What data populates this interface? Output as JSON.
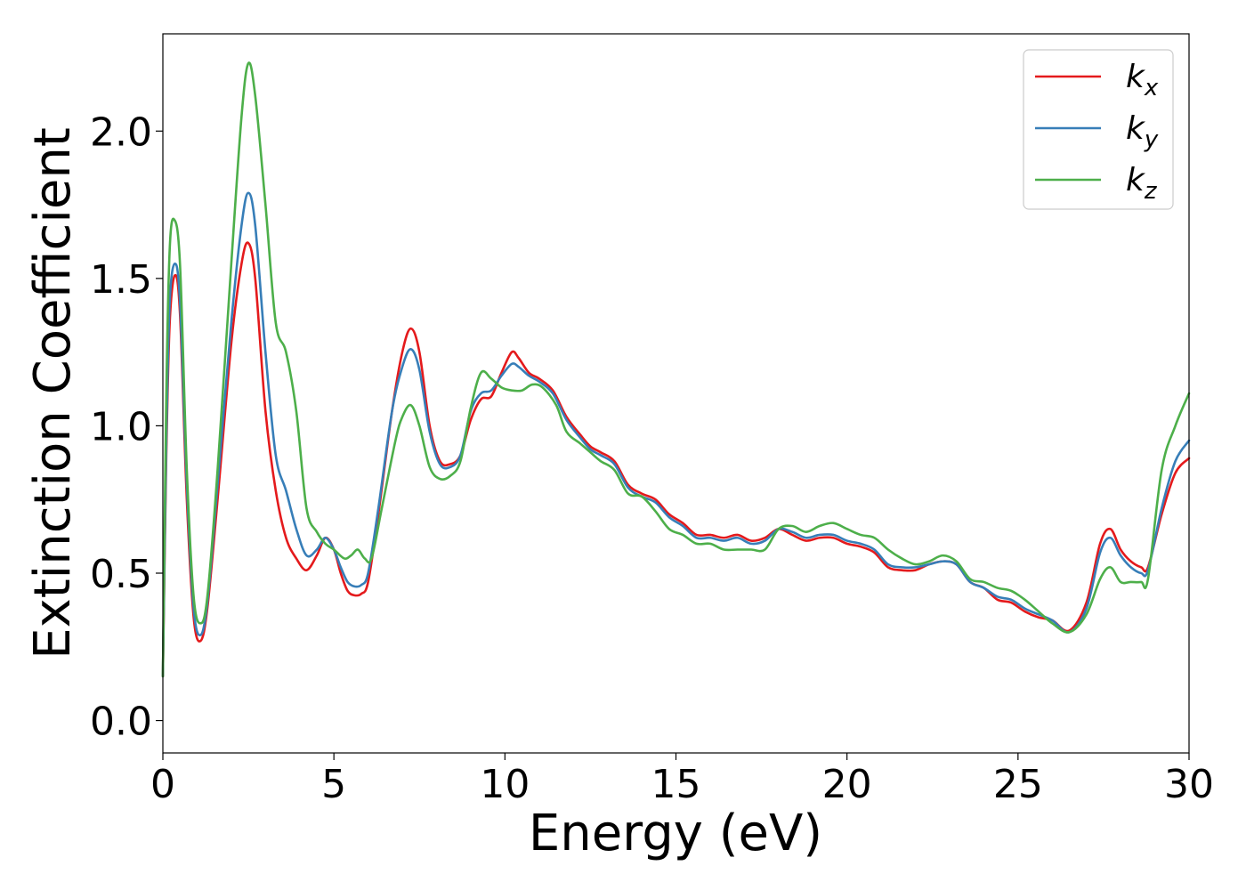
{
  "chart_data": {
    "type": "line",
    "title": "",
    "xlabel": "Energy (eV)",
    "ylabel": "Extinction Coefficient",
    "xlim": [
      0,
      30
    ],
    "ylim": [
      -0.11,
      2.33
    ],
    "xticks": [
      0,
      5,
      10,
      15,
      20,
      25,
      30
    ],
    "xtick_labels": [
      "0",
      "5",
      "10",
      "15",
      "20",
      "25",
      "30"
    ],
    "yticks": [
      0.0,
      0.5,
      1.0,
      1.5,
      2.0
    ],
    "ytick_labels": [
      "0.0",
      "0.5",
      "1.0",
      "1.5",
      "2.0"
    ],
    "grid": false,
    "legend_position": "top-right",
    "series": [
      {
        "name": "k_x",
        "legend_base": "k",
        "legend_sub": "x",
        "color": "#e41a1c",
        "points": [
          [
            0,
            0.15
          ],
          [
            0.1,
            0.9
          ],
          [
            0.2,
            1.35
          ],
          [
            0.35,
            1.51
          ],
          [
            0.5,
            1.38
          ],
          [
            0.7,
            0.75
          ],
          [
            0.9,
            0.35
          ],
          [
            1.1,
            0.27
          ],
          [
            1.3,
            0.38
          ],
          [
            1.6,
            0.75
          ],
          [
            2.0,
            1.28
          ],
          [
            2.3,
            1.55
          ],
          [
            2.5,
            1.62
          ],
          [
            2.7,
            1.5
          ],
          [
            3.0,
            1.05
          ],
          [
            3.3,
            0.78
          ],
          [
            3.6,
            0.62
          ],
          [
            3.9,
            0.55
          ],
          [
            4.2,
            0.51
          ],
          [
            4.5,
            0.56
          ],
          [
            4.75,
            0.62
          ],
          [
            5.0,
            0.58
          ],
          [
            5.2,
            0.5
          ],
          [
            5.4,
            0.44
          ],
          [
            5.6,
            0.425
          ],
          [
            5.8,
            0.43
          ],
          [
            6.0,
            0.47
          ],
          [
            6.3,
            0.7
          ],
          [
            6.7,
            1.05
          ],
          [
            7.0,
            1.25
          ],
          [
            7.25,
            1.33
          ],
          [
            7.5,
            1.25
          ],
          [
            7.8,
            1.0
          ],
          [
            8.1,
            0.88
          ],
          [
            8.4,
            0.87
          ],
          [
            8.7,
            0.9
          ],
          [
            9.0,
            1.02
          ],
          [
            9.3,
            1.09
          ],
          [
            9.6,
            1.1
          ],
          [
            9.9,
            1.18
          ],
          [
            10.2,
            1.25
          ],
          [
            10.4,
            1.23
          ],
          [
            10.7,
            1.18
          ],
          [
            11.0,
            1.16
          ],
          [
            11.4,
            1.12
          ],
          [
            11.8,
            1.03
          ],
          [
            12.2,
            0.97
          ],
          [
            12.5,
            0.93
          ],
          [
            12.8,
            0.91
          ],
          [
            13.2,
            0.88
          ],
          [
            13.6,
            0.8
          ],
          [
            14.0,
            0.77
          ],
          [
            14.4,
            0.75
          ],
          [
            14.8,
            0.7
          ],
          [
            15.2,
            0.67
          ],
          [
            15.6,
            0.63
          ],
          [
            16.0,
            0.63
          ],
          [
            16.4,
            0.62
          ],
          [
            16.8,
            0.63
          ],
          [
            17.2,
            0.61
          ],
          [
            17.6,
            0.62
          ],
          [
            18.0,
            0.65
          ],
          [
            18.4,
            0.63
          ],
          [
            18.8,
            0.61
          ],
          [
            19.2,
            0.62
          ],
          [
            19.6,
            0.62
          ],
          [
            20.0,
            0.6
          ],
          [
            20.4,
            0.59
          ],
          [
            20.8,
            0.57
          ],
          [
            21.2,
            0.52
          ],
          [
            21.6,
            0.51
          ],
          [
            22.0,
            0.51
          ],
          [
            22.4,
            0.53
          ],
          [
            22.8,
            0.54
          ],
          [
            23.2,
            0.53
          ],
          [
            23.6,
            0.47
          ],
          [
            24.0,
            0.45
          ],
          [
            24.4,
            0.41
          ],
          [
            24.8,
            0.4
          ],
          [
            25.2,
            0.37
          ],
          [
            25.6,
            0.35
          ],
          [
            26.0,
            0.34
          ],
          [
            26.5,
            0.305
          ],
          [
            27.0,
            0.4
          ],
          [
            27.4,
            0.6
          ],
          [
            27.7,
            0.65
          ],
          [
            28.0,
            0.58
          ],
          [
            28.3,
            0.54
          ],
          [
            28.6,
            0.52
          ],
          [
            28.8,
            0.52
          ],
          [
            29.2,
            0.7
          ],
          [
            29.6,
            0.84
          ],
          [
            30.0,
            0.89
          ]
        ]
      },
      {
        "name": "k_y",
        "legend_base": "k",
        "legend_sub": "y",
        "color": "#377eb8",
        "points": [
          [
            0,
            0.15
          ],
          [
            0.1,
            0.95
          ],
          [
            0.2,
            1.42
          ],
          [
            0.35,
            1.55
          ],
          [
            0.5,
            1.42
          ],
          [
            0.7,
            0.8
          ],
          [
            0.9,
            0.38
          ],
          [
            1.1,
            0.29
          ],
          [
            1.3,
            0.4
          ],
          [
            1.6,
            0.8
          ],
          [
            2.0,
            1.35
          ],
          [
            2.3,
            1.68
          ],
          [
            2.5,
            1.79
          ],
          [
            2.7,
            1.68
          ],
          [
            3.0,
            1.25
          ],
          [
            3.3,
            0.9
          ],
          [
            3.6,
            0.78
          ],
          [
            3.9,
            0.65
          ],
          [
            4.2,
            0.56
          ],
          [
            4.5,
            0.58
          ],
          [
            4.75,
            0.62
          ],
          [
            5.0,
            0.58
          ],
          [
            5.2,
            0.52
          ],
          [
            5.4,
            0.47
          ],
          [
            5.6,
            0.455
          ],
          [
            5.8,
            0.46
          ],
          [
            6.0,
            0.5
          ],
          [
            6.3,
            0.72
          ],
          [
            6.7,
            1.05
          ],
          [
            7.0,
            1.2
          ],
          [
            7.25,
            1.26
          ],
          [
            7.5,
            1.19
          ],
          [
            7.8,
            0.98
          ],
          [
            8.1,
            0.87
          ],
          [
            8.4,
            0.86
          ],
          [
            8.7,
            0.9
          ],
          [
            9.0,
            1.05
          ],
          [
            9.3,
            1.11
          ],
          [
            9.6,
            1.12
          ],
          [
            9.9,
            1.17
          ],
          [
            10.2,
            1.21
          ],
          [
            10.4,
            1.2
          ],
          [
            10.7,
            1.17
          ],
          [
            11.0,
            1.15
          ],
          [
            11.4,
            1.11
          ],
          [
            11.8,
            1.02
          ],
          [
            12.2,
            0.96
          ],
          [
            12.5,
            0.92
          ],
          [
            12.8,
            0.9
          ],
          [
            13.2,
            0.87
          ],
          [
            13.6,
            0.79
          ],
          [
            14.0,
            0.76
          ],
          [
            14.4,
            0.74
          ],
          [
            14.8,
            0.69
          ],
          [
            15.2,
            0.66
          ],
          [
            15.6,
            0.62
          ],
          [
            16.0,
            0.62
          ],
          [
            16.4,
            0.61
          ],
          [
            16.8,
            0.62
          ],
          [
            17.2,
            0.6
          ],
          [
            17.6,
            0.61
          ],
          [
            18.0,
            0.65
          ],
          [
            18.4,
            0.64
          ],
          [
            18.8,
            0.62
          ],
          [
            19.2,
            0.63
          ],
          [
            19.6,
            0.63
          ],
          [
            20.0,
            0.61
          ],
          [
            20.4,
            0.6
          ],
          [
            20.8,
            0.58
          ],
          [
            21.2,
            0.53
          ],
          [
            21.6,
            0.52
          ],
          [
            22.0,
            0.52
          ],
          [
            22.4,
            0.53
          ],
          [
            22.8,
            0.54
          ],
          [
            23.2,
            0.53
          ],
          [
            23.6,
            0.47
          ],
          [
            24.0,
            0.45
          ],
          [
            24.4,
            0.42
          ],
          [
            24.8,
            0.41
          ],
          [
            25.2,
            0.38
          ],
          [
            25.6,
            0.36
          ],
          [
            26.0,
            0.34
          ],
          [
            26.5,
            0.3
          ],
          [
            27.0,
            0.38
          ],
          [
            27.4,
            0.57
          ],
          [
            27.7,
            0.62
          ],
          [
            28.0,
            0.56
          ],
          [
            28.3,
            0.52
          ],
          [
            28.6,
            0.5
          ],
          [
            28.8,
            0.51
          ],
          [
            29.2,
            0.72
          ],
          [
            29.6,
            0.88
          ],
          [
            30.0,
            0.95
          ]
        ]
      },
      {
        "name": "k_z",
        "legend_base": "k",
        "legend_sub": "z",
        "color": "#4daf4a",
        "points": [
          [
            0,
            0.15
          ],
          [
            0.1,
            1.1
          ],
          [
            0.2,
            1.6
          ],
          [
            0.33,
            1.7
          ],
          [
            0.5,
            1.55
          ],
          [
            0.7,
            0.85
          ],
          [
            0.9,
            0.42
          ],
          [
            1.1,
            0.33
          ],
          [
            1.3,
            0.42
          ],
          [
            1.6,
            0.85
          ],
          [
            2.0,
            1.55
          ],
          [
            2.3,
            2.05
          ],
          [
            2.5,
            2.23
          ],
          [
            2.7,
            2.12
          ],
          [
            3.0,
            1.75
          ],
          [
            3.3,
            1.35
          ],
          [
            3.6,
            1.25
          ],
          [
            3.9,
            1.05
          ],
          [
            4.2,
            0.72
          ],
          [
            4.5,
            0.64
          ],
          [
            4.75,
            0.6
          ],
          [
            5.0,
            0.58
          ],
          [
            5.3,
            0.55
          ],
          [
            5.5,
            0.56
          ],
          [
            5.7,
            0.58
          ],
          [
            5.9,
            0.55
          ],
          [
            6.1,
            0.55
          ],
          [
            6.4,
            0.72
          ],
          [
            6.8,
            0.95
          ],
          [
            7.0,
            1.03
          ],
          [
            7.25,
            1.07
          ],
          [
            7.5,
            1.0
          ],
          [
            7.8,
            0.86
          ],
          [
            8.1,
            0.82
          ],
          [
            8.4,
            0.83
          ],
          [
            8.7,
            0.88
          ],
          [
            9.0,
            1.06
          ],
          [
            9.3,
            1.18
          ],
          [
            9.6,
            1.16
          ],
          [
            9.9,
            1.13
          ],
          [
            10.2,
            1.12
          ],
          [
            10.5,
            1.12
          ],
          [
            10.8,
            1.14
          ],
          [
            11.1,
            1.13
          ],
          [
            11.5,
            1.07
          ],
          [
            11.8,
            0.98
          ],
          [
            12.2,
            0.94
          ],
          [
            12.5,
            0.91
          ],
          [
            12.8,
            0.88
          ],
          [
            13.2,
            0.85
          ],
          [
            13.6,
            0.77
          ],
          [
            14.0,
            0.76
          ],
          [
            14.4,
            0.71
          ],
          [
            14.8,
            0.65
          ],
          [
            15.2,
            0.63
          ],
          [
            15.6,
            0.6
          ],
          [
            16.0,
            0.6
          ],
          [
            16.4,
            0.58
          ],
          [
            16.8,
            0.58
          ],
          [
            17.2,
            0.58
          ],
          [
            17.6,
            0.58
          ],
          [
            18.0,
            0.65
          ],
          [
            18.4,
            0.66
          ],
          [
            18.8,
            0.64
          ],
          [
            19.2,
            0.66
          ],
          [
            19.6,
            0.67
          ],
          [
            20.0,
            0.65
          ],
          [
            20.4,
            0.63
          ],
          [
            20.8,
            0.62
          ],
          [
            21.2,
            0.58
          ],
          [
            21.6,
            0.55
          ],
          [
            22.0,
            0.53
          ],
          [
            22.4,
            0.54
          ],
          [
            22.8,
            0.56
          ],
          [
            23.2,
            0.54
          ],
          [
            23.6,
            0.48
          ],
          [
            24.0,
            0.47
          ],
          [
            24.4,
            0.45
          ],
          [
            24.8,
            0.44
          ],
          [
            25.2,
            0.41
          ],
          [
            25.6,
            0.37
          ],
          [
            26.0,
            0.33
          ],
          [
            26.5,
            0.3
          ],
          [
            27.0,
            0.36
          ],
          [
            27.4,
            0.48
          ],
          [
            27.7,
            0.52
          ],
          [
            28.0,
            0.47
          ],
          [
            28.3,
            0.47
          ],
          [
            28.6,
            0.47
          ],
          [
            28.8,
            0.48
          ],
          [
            29.2,
            0.85
          ],
          [
            29.6,
            1.0
          ],
          [
            30.0,
            1.11
          ]
        ]
      }
    ]
  }
}
